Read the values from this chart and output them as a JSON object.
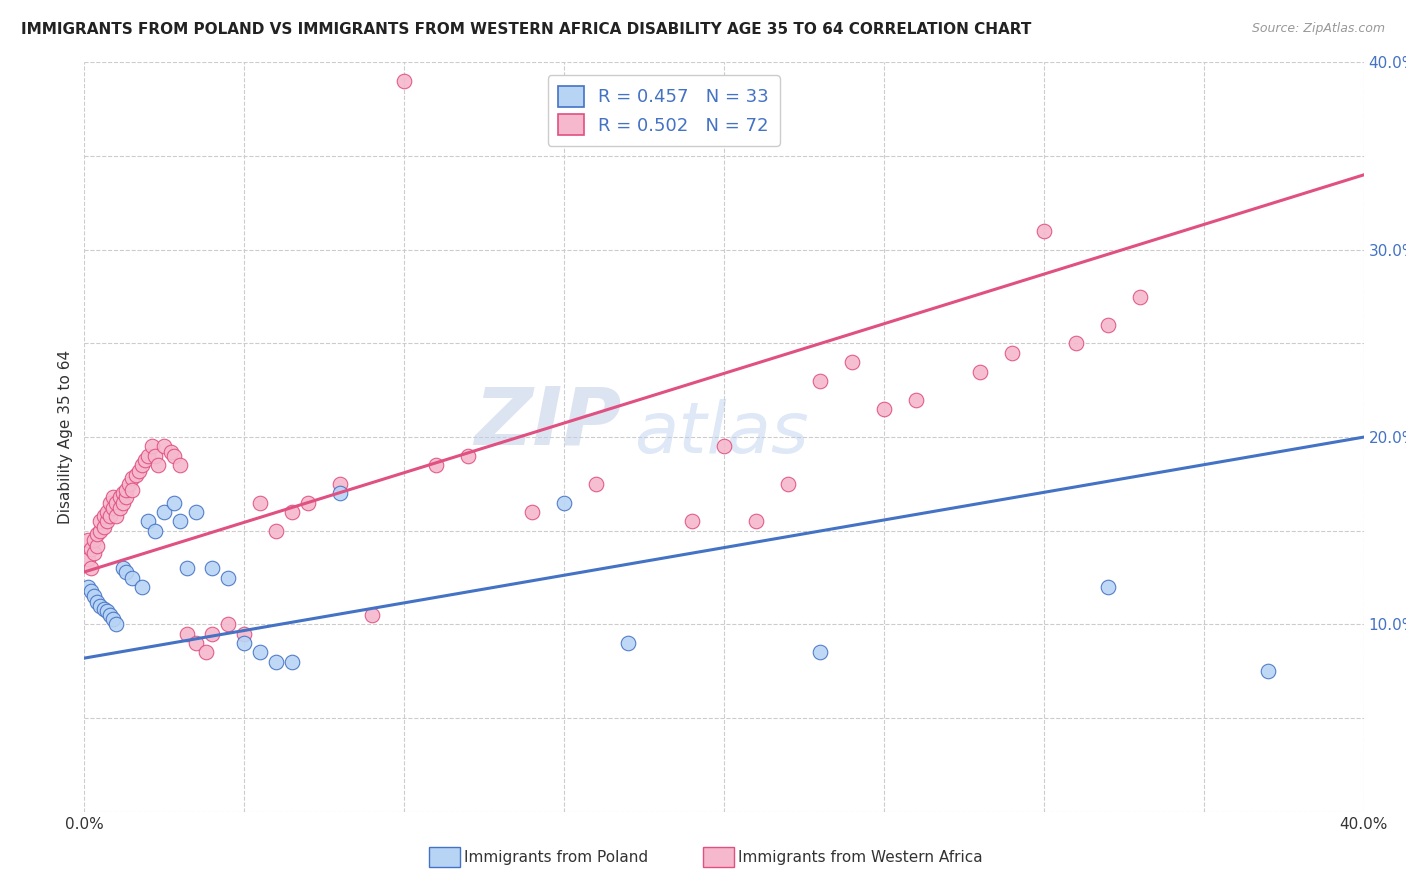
{
  "title": "IMMIGRANTS FROM POLAND VS IMMIGRANTS FROM WESTERN AFRICA DISABILITY AGE 35 TO 64 CORRELATION CHART",
  "source": "Source: ZipAtlas.com",
  "ylabel": "Disability Age 35 to 64",
  "xlim": [
    0.0,
    0.4
  ],
  "ylim": [
    0.0,
    0.4
  ],
  "xticks": [
    0.0,
    0.05,
    0.1,
    0.15,
    0.2,
    0.25,
    0.3,
    0.35,
    0.4
  ],
  "yticks": [
    0.0,
    0.05,
    0.1,
    0.15,
    0.2,
    0.25,
    0.3,
    0.35,
    0.4
  ],
  "legend_R1": "R = 0.457",
  "legend_N1": "N = 33",
  "legend_R2": "R = 0.502",
  "legend_N2": "N = 72",
  "color_poland": "#b8d4f5",
  "color_w_africa": "#f5b8cc",
  "color_poland_line": "#4472c4",
  "color_w_africa_line": "#e05080",
  "color_text_blue": "#4472c4",
  "watermark_zip": "ZIP",
  "watermark_atlas": "atlas",
  "poland_line_x0": 0.0,
  "poland_line_y0": 0.082,
  "poland_line_x1": 0.4,
  "poland_line_y1": 0.2,
  "wafrica_line_x0": 0.0,
  "wafrica_line_y0": 0.128,
  "wafrica_line_x1": 0.4,
  "wafrica_line_y1": 0.34,
  "poland_x": [
    0.001,
    0.002,
    0.003,
    0.004,
    0.005,
    0.006,
    0.007,
    0.008,
    0.009,
    0.01,
    0.012,
    0.013,
    0.015,
    0.018,
    0.02,
    0.022,
    0.025,
    0.028,
    0.03,
    0.032,
    0.035,
    0.04,
    0.045,
    0.05,
    0.055,
    0.06,
    0.065,
    0.08,
    0.15,
    0.17,
    0.23,
    0.32,
    0.37
  ],
  "poland_y": [
    0.12,
    0.118,
    0.115,
    0.112,
    0.11,
    0.108,
    0.107,
    0.105,
    0.103,
    0.1,
    0.13,
    0.128,
    0.125,
    0.12,
    0.155,
    0.15,
    0.16,
    0.165,
    0.155,
    0.13,
    0.16,
    0.13,
    0.125,
    0.09,
    0.085,
    0.08,
    0.08,
    0.17,
    0.165,
    0.09,
    0.085,
    0.12,
    0.075
  ],
  "wafrica_x": [
    0.001,
    0.001,
    0.002,
    0.002,
    0.003,
    0.003,
    0.004,
    0.004,
    0.005,
    0.005,
    0.006,
    0.006,
    0.007,
    0.007,
    0.008,
    0.008,
    0.009,
    0.009,
    0.01,
    0.01,
    0.011,
    0.011,
    0.012,
    0.012,
    0.013,
    0.013,
    0.014,
    0.015,
    0.015,
    0.016,
    0.017,
    0.018,
    0.019,
    0.02,
    0.021,
    0.022,
    0.023,
    0.025,
    0.027,
    0.028,
    0.03,
    0.032,
    0.035,
    0.038,
    0.04,
    0.045,
    0.05,
    0.055,
    0.06,
    0.065,
    0.07,
    0.08,
    0.09,
    0.1,
    0.11,
    0.12,
    0.14,
    0.16,
    0.19,
    0.2,
    0.21,
    0.22,
    0.23,
    0.24,
    0.25,
    0.26,
    0.28,
    0.29,
    0.3,
    0.31,
    0.32,
    0.33
  ],
  "wafrica_y": [
    0.135,
    0.145,
    0.13,
    0.14,
    0.138,
    0.145,
    0.142,
    0.148,
    0.15,
    0.155,
    0.152,
    0.158,
    0.155,
    0.16,
    0.158,
    0.165,
    0.162,
    0.168,
    0.165,
    0.158,
    0.162,
    0.168,
    0.17,
    0.165,
    0.168,
    0.172,
    0.175,
    0.178,
    0.172,
    0.18,
    0.182,
    0.185,
    0.188,
    0.19,
    0.195,
    0.19,
    0.185,
    0.195,
    0.192,
    0.19,
    0.185,
    0.095,
    0.09,
    0.085,
    0.095,
    0.1,
    0.095,
    0.165,
    0.15,
    0.16,
    0.165,
    0.175,
    0.105,
    0.39,
    0.185,
    0.19,
    0.16,
    0.175,
    0.155,
    0.195,
    0.155,
    0.175,
    0.23,
    0.24,
    0.215,
    0.22,
    0.235,
    0.245,
    0.31,
    0.25,
    0.26,
    0.275
  ]
}
